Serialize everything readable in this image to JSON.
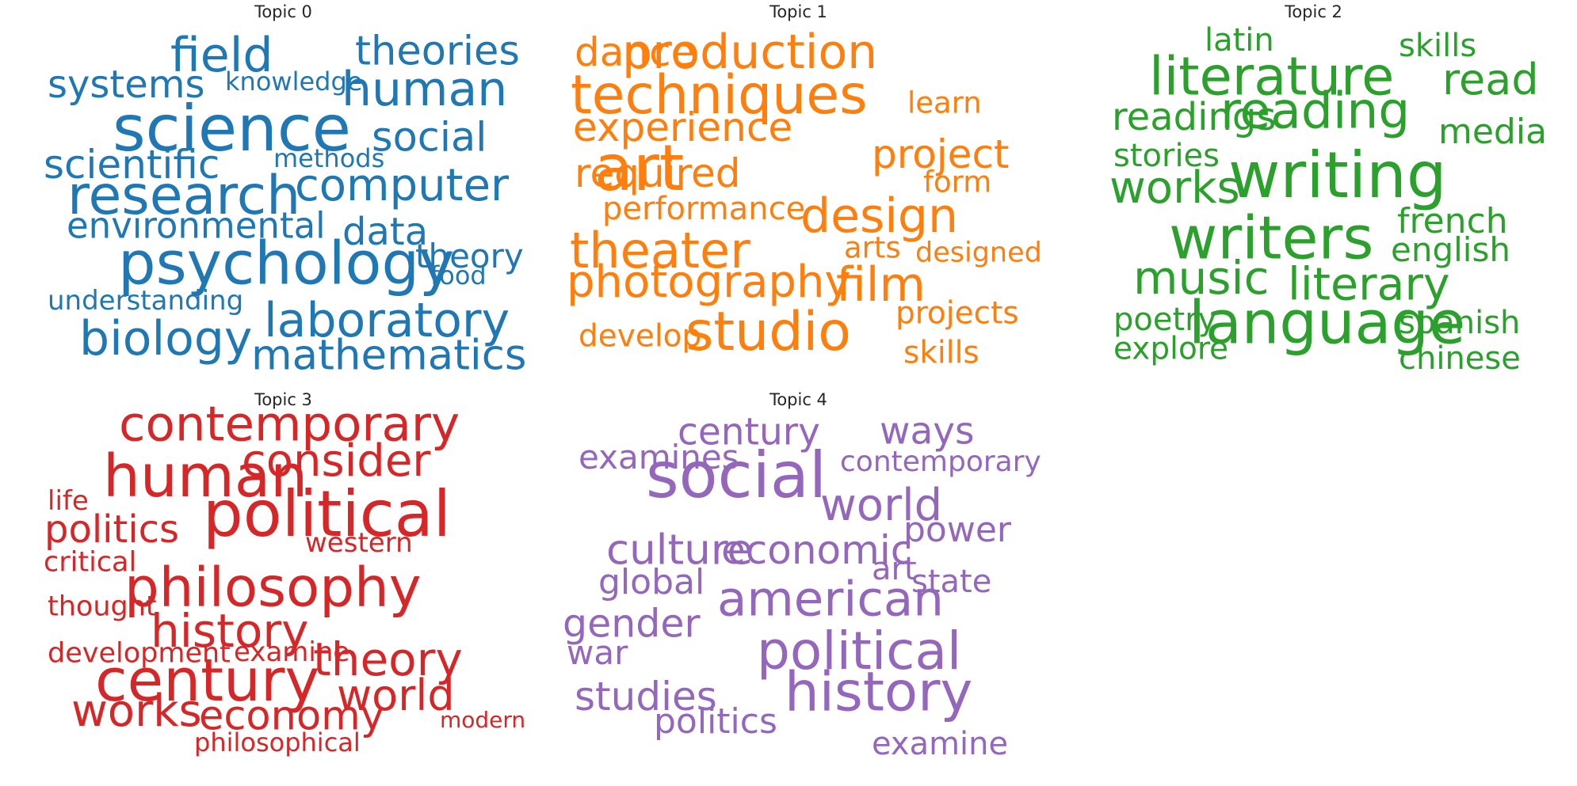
{
  "chart_data": {
    "type": "wordcloud",
    "panels": [
      {
        "title": "Topic 0",
        "color": "#1f77b4",
        "words": [
          {
            "text": "science",
            "weight": 1.0
          },
          {
            "text": "psychology",
            "weight": 0.93
          },
          {
            "text": "research",
            "weight": 0.84
          },
          {
            "text": "field",
            "weight": 0.72
          },
          {
            "text": "human",
            "weight": 0.72
          },
          {
            "text": "laboratory",
            "weight": 0.72
          },
          {
            "text": "biology",
            "weight": 0.72
          },
          {
            "text": "computer",
            "weight": 0.66
          },
          {
            "text": "mathematics",
            "weight": 0.62
          },
          {
            "text": "theories",
            "weight": 0.6
          },
          {
            "text": "social",
            "weight": 0.6
          },
          {
            "text": "scientific",
            "weight": 0.58
          },
          {
            "text": "data",
            "weight": 0.55
          },
          {
            "text": "theory",
            "weight": 0.55
          },
          {
            "text": "systems",
            "weight": 0.55
          },
          {
            "text": "environmental",
            "weight": 0.52
          },
          {
            "text": "understanding",
            "weight": 0.36
          },
          {
            "text": "knowledge",
            "weight": 0.33
          },
          {
            "text": "methods",
            "weight": 0.33
          },
          {
            "text": "food",
            "weight": 0.33
          }
        ]
      },
      {
        "title": "Topic 1",
        "color": "#ff7f0e",
        "words": [
          {
            "text": "art",
            "weight": 1.0
          },
          {
            "text": "techniques",
            "weight": 0.83
          },
          {
            "text": "studio",
            "weight": 0.83
          },
          {
            "text": "theater",
            "weight": 0.75
          },
          {
            "text": "film",
            "weight": 0.72
          },
          {
            "text": "production",
            "weight": 0.72
          },
          {
            "text": "design",
            "weight": 0.72
          },
          {
            "text": "photography",
            "weight": 0.66
          },
          {
            "text": "project",
            "weight": 0.58
          },
          {
            "text": "experience",
            "weight": 0.58
          },
          {
            "text": "required",
            "weight": 0.58
          },
          {
            "text": "dance",
            "weight": 0.58
          },
          {
            "text": "performance",
            "weight": 0.45
          },
          {
            "text": "designed",
            "weight": 0.43
          },
          {
            "text": "projects",
            "weight": 0.43
          },
          {
            "text": "skills",
            "weight": 0.43
          },
          {
            "text": "develop",
            "weight": 0.43
          },
          {
            "text": "learn",
            "weight": 0.4
          },
          {
            "text": "arts",
            "weight": 0.4
          },
          {
            "text": "form",
            "weight": 0.4
          }
        ]
      },
      {
        "title": "Topic 2",
        "color": "#2ca02c",
        "words": [
          {
            "text": "writing",
            "weight": 1.0
          },
          {
            "text": "language",
            "weight": 0.93
          },
          {
            "text": "writers",
            "weight": 0.93
          },
          {
            "text": "literature",
            "weight": 0.82
          },
          {
            "text": "reading",
            "weight": 0.76
          },
          {
            "text": "music",
            "weight": 0.7
          },
          {
            "text": "literary",
            "weight": 0.68
          },
          {
            "text": "works",
            "weight": 0.66
          },
          {
            "text": "read",
            "weight": 0.64
          },
          {
            "text": "readings",
            "weight": 0.56
          },
          {
            "text": "french",
            "weight": 0.5
          },
          {
            "text": "media",
            "weight": 0.5
          },
          {
            "text": "english",
            "weight": 0.47
          },
          {
            "text": "poetry",
            "weight": 0.45
          },
          {
            "text": "skills",
            "weight": 0.45
          },
          {
            "text": "spanish",
            "weight": 0.45
          },
          {
            "text": "latin",
            "weight": 0.45
          },
          {
            "text": "stories",
            "weight": 0.45
          },
          {
            "text": "chinese",
            "weight": 0.45
          },
          {
            "text": "explore",
            "weight": 0.43
          }
        ]
      },
      {
        "title": "Topic 3",
        "color": "#d62728",
        "words": [
          {
            "text": "political",
            "weight": 1.0
          },
          {
            "text": "human",
            "weight": 0.92
          },
          {
            "text": "century",
            "weight": 0.92
          },
          {
            "text": "philosophy",
            "weight": 0.85
          },
          {
            "text": "contemporary",
            "weight": 0.73
          },
          {
            "text": "history",
            "weight": 0.7
          },
          {
            "text": "theory",
            "weight": 0.7
          },
          {
            "text": "consider",
            "weight": 0.66
          },
          {
            "text": "works",
            "weight": 0.66
          },
          {
            "text": "world",
            "weight": 0.64
          },
          {
            "text": "economy",
            "weight": 0.6
          },
          {
            "text": "politics",
            "weight": 0.56
          },
          {
            "text": "critical",
            "weight": 0.38
          },
          {
            "text": "thought",
            "weight": 0.38
          },
          {
            "text": "development",
            "weight": 0.38
          },
          {
            "text": "examine",
            "weight": 0.36
          },
          {
            "text": "western",
            "weight": 0.36
          },
          {
            "text": "modern",
            "weight": 0.36
          },
          {
            "text": "life",
            "weight": 0.36
          },
          {
            "text": "philosophical",
            "weight": 0.33
          }
        ]
      },
      {
        "title": "Topic 4",
        "color": "#9467bd",
        "words": [
          {
            "text": "social",
            "weight": 1.0
          },
          {
            "text": "history",
            "weight": 0.85
          },
          {
            "text": "political",
            "weight": 0.8
          },
          {
            "text": "american",
            "weight": 0.73
          },
          {
            "text": "world",
            "weight": 0.66
          },
          {
            "text": "culture",
            "weight": 0.63
          },
          {
            "text": "economic",
            "weight": 0.58
          },
          {
            "text": "studies",
            "weight": 0.58
          },
          {
            "text": "gender",
            "weight": 0.57
          },
          {
            "text": "century",
            "weight": 0.54
          },
          {
            "text": "ways",
            "weight": 0.54
          },
          {
            "text": "power",
            "weight": 0.5
          },
          {
            "text": "contemporary",
            "weight": 0.5
          },
          {
            "text": "global",
            "weight": 0.5
          },
          {
            "text": "politics",
            "weight": 0.5
          },
          {
            "text": "war",
            "weight": 0.47
          },
          {
            "text": "examines",
            "weight": 0.47
          },
          {
            "text": "state",
            "weight": 0.45
          },
          {
            "text": "examine",
            "weight": 0.45
          },
          {
            "text": "art",
            "weight": 0.45
          }
        ]
      }
    ]
  }
}
